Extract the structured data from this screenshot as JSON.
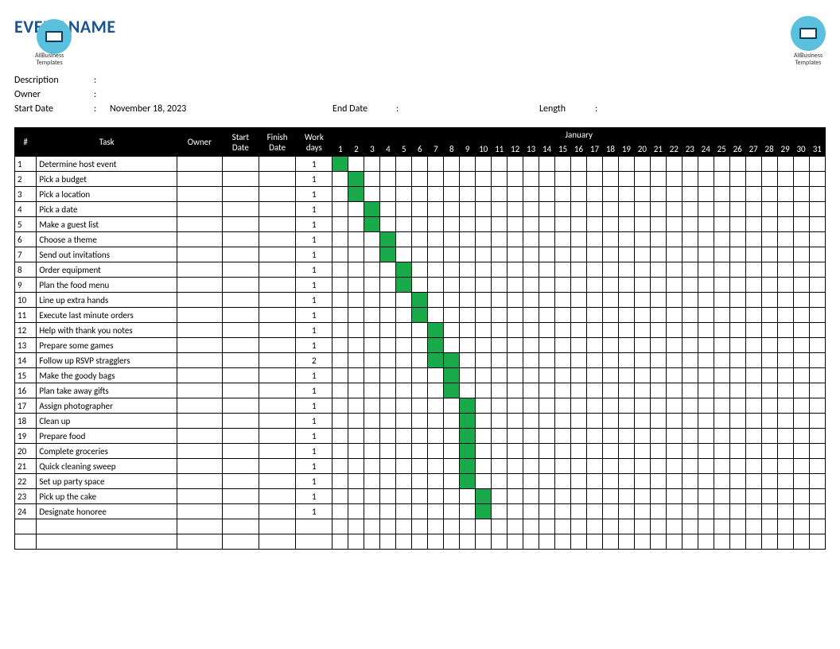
{
  "title": "EVENT NAME",
  "title_color": "#1a5490",
  "logo_text": "AllBusiness\nTemplates",
  "meta": {
    "description_label": "Description",
    "description_value": "",
    "owner_label": "Owner",
    "owner_value": "",
    "start_date_label": "Start Date",
    "start_date_value": "November 18, 2023",
    "end_date_label": "End Date",
    "end_date_value": "",
    "length_label": "Length",
    "length_value": ""
  },
  "headers": {
    "num": "#",
    "task": "Task",
    "owner": "Owner",
    "start": "Start Date",
    "finish": "Finish Date",
    "workdays": "Work days",
    "month": "January"
  },
  "days": [
    1,
    2,
    3,
    4,
    5,
    6,
    7,
    8,
    9,
    10,
    11,
    12,
    13,
    14,
    15,
    16,
    17,
    18,
    19,
    20,
    21,
    22,
    23,
    24,
    25,
    26,
    27,
    28,
    29,
    30,
    31
  ],
  "fill_color": "#19a84a",
  "header_bg": "#000000",
  "header_fg": "#ffffff",
  "grid_color": "#000000",
  "tasks": [
    {
      "n": 1,
      "name": "Determine host event",
      "owner": "",
      "start": "",
      "finish": "",
      "work": 1,
      "bars": [
        1
      ]
    },
    {
      "n": 2,
      "name": "Pick a budget",
      "owner": "",
      "start": "",
      "finish": "",
      "work": 1,
      "bars": [
        2
      ]
    },
    {
      "n": 3,
      "name": "Pick a location",
      "owner": "",
      "start": "",
      "finish": "",
      "work": 1,
      "bars": [
        2
      ]
    },
    {
      "n": 4,
      "name": "Pick a date",
      "owner": "",
      "start": "",
      "finish": "",
      "work": 1,
      "bars": [
        3
      ]
    },
    {
      "n": 5,
      "name": "Make a guest list",
      "owner": "",
      "start": "",
      "finish": "",
      "work": 1,
      "bars": [
        3
      ]
    },
    {
      "n": 6,
      "name": "Choose a theme",
      "owner": "",
      "start": "",
      "finish": "",
      "work": 1,
      "bars": [
        4
      ]
    },
    {
      "n": 7,
      "name": "Send out invitations",
      "owner": "",
      "start": "",
      "finish": "",
      "work": 1,
      "bars": [
        4
      ]
    },
    {
      "n": 8,
      "name": "Order equipment",
      "owner": "",
      "start": "",
      "finish": "",
      "work": 1,
      "bars": [
        5
      ]
    },
    {
      "n": 9,
      "name": "Plan the food menu",
      "owner": "",
      "start": "",
      "finish": "",
      "work": 1,
      "bars": [
        5
      ]
    },
    {
      "n": 10,
      "name": "Line up extra hands",
      "owner": "",
      "start": "",
      "finish": "",
      "work": 1,
      "bars": [
        6
      ]
    },
    {
      "n": 11,
      "name": "Execute last minute orders",
      "owner": "",
      "start": "",
      "finish": "",
      "work": 1,
      "bars": [
        6
      ]
    },
    {
      "n": 12,
      "name": "Help with thank you notes",
      "owner": "",
      "start": "",
      "finish": "",
      "work": 1,
      "bars": [
        7
      ]
    },
    {
      "n": 13,
      "name": "Prepare some games",
      "owner": "",
      "start": "",
      "finish": "",
      "work": 1,
      "bars": [
        7
      ]
    },
    {
      "n": 14,
      "name": "Follow up RSVP stragglers",
      "owner": "",
      "start": "",
      "finish": "",
      "work": 2,
      "bars": [
        7,
        8
      ]
    },
    {
      "n": 15,
      "name": "Make the goody bags",
      "owner": "",
      "start": "",
      "finish": "",
      "work": 1,
      "bars": [
        8
      ]
    },
    {
      "n": 16,
      "name": "Plan take away gifts",
      "owner": "",
      "start": "",
      "finish": "",
      "work": 1,
      "bars": [
        8
      ]
    },
    {
      "n": 17,
      "name": "Assign photographer",
      "owner": "",
      "start": "",
      "finish": "",
      "work": 1,
      "bars": [
        9
      ]
    },
    {
      "n": 18,
      "name": "Clean up",
      "owner": "",
      "start": "",
      "finish": "",
      "work": 1,
      "bars": [
        9
      ]
    },
    {
      "n": 19,
      "name": "Prepare food",
      "owner": "",
      "start": "",
      "finish": "",
      "work": 1,
      "bars": [
        9
      ]
    },
    {
      "n": 20,
      "name": "Complete groceries",
      "owner": "",
      "start": "",
      "finish": "",
      "work": 1,
      "bars": [
        9
      ]
    },
    {
      "n": 21,
      "name": "Quick cleaning sweep",
      "owner": "",
      "start": "",
      "finish": "",
      "work": 1,
      "bars": [
        9
      ]
    },
    {
      "n": 22,
      "name": "Set up party space",
      "owner": "",
      "start": "",
      "finish": "",
      "work": 1,
      "bars": [
        9
      ]
    },
    {
      "n": 23,
      "name": "Pick up the cake",
      "owner": "",
      "start": "",
      "finish": "",
      "work": 1,
      "bars": [
        10
      ]
    },
    {
      "n": 24,
      "name": "Designate honoree",
      "owner": "",
      "start": "",
      "finish": "",
      "work": 1,
      "bars": [
        10
      ]
    }
  ],
  "empty_rows": 2
}
